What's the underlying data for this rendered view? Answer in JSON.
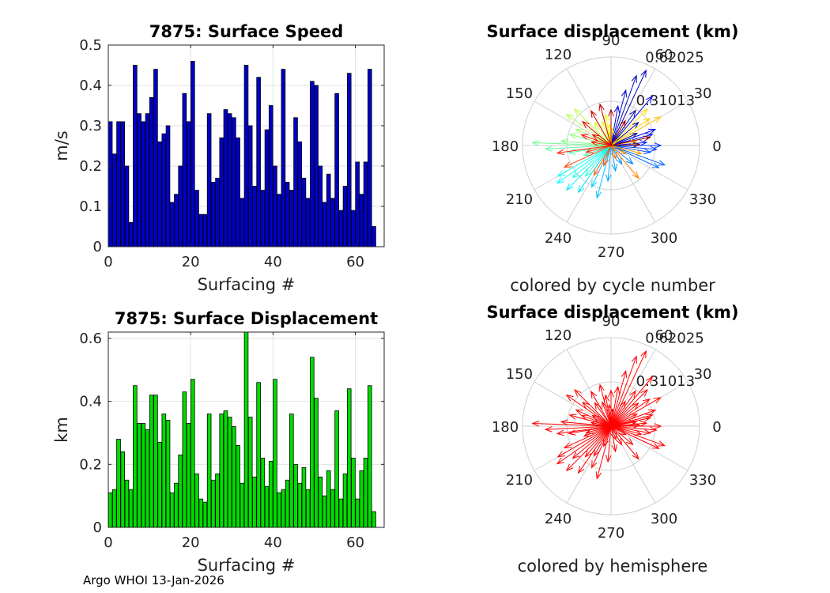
{
  "footer": "Argo WHOI 13-Jan-2026",
  "chart_data": [
    {
      "type": "bar",
      "title": "7875: Surface Speed",
      "xlabel": "Surfacing #",
      "ylabel": "m/s",
      "xlim": [
        0,
        67
      ],
      "ylim": [
        0,
        0.5
      ],
      "xticks": [
        "0",
        "20",
        "40",
        "60"
      ],
      "yticks": [
        "0",
        "0.1",
        "0.2",
        "0.3",
        "0.4",
        "0.5"
      ],
      "color": "#0000c8",
      "x": [
        0,
        1,
        2,
        3,
        4,
        5,
        6,
        7,
        8,
        9,
        10,
        11,
        12,
        13,
        14,
        15,
        16,
        17,
        18,
        19,
        20,
        21,
        22,
        23,
        24,
        25,
        26,
        27,
        28,
        29,
        30,
        31,
        32,
        33,
        34,
        35,
        36,
        37,
        38,
        39,
        40,
        41,
        42,
        43,
        44,
        45,
        46,
        47,
        48,
        49,
        50,
        51,
        52,
        53,
        54,
        55,
        56,
        57,
        58,
        59,
        60,
        61,
        62,
        63,
        64
      ],
      "values": [
        0.31,
        0.23,
        0.31,
        0.31,
        0.2,
        0.06,
        0.45,
        0.33,
        0.31,
        0.33,
        0.37,
        0.44,
        0.26,
        0.28,
        0.3,
        0.11,
        0.13,
        0.2,
        0.38,
        0.31,
        0.46,
        0.14,
        0.08,
        0.08,
        0.33,
        0.16,
        0.17,
        0.27,
        0.34,
        0.33,
        0.32,
        0.27,
        0.12,
        0.45,
        0.3,
        0.15,
        0.42,
        0.14,
        0.29,
        0.35,
        0.2,
        0.13,
        0.44,
        0.16,
        0.14,
        0.32,
        0.26,
        0.17,
        0.12,
        0.41,
        0.4,
        0.2,
        0.11,
        0.18,
        0.12,
        0.38,
        0.09,
        0.15,
        0.43,
        0.09,
        0.21,
        0.13,
        0.21,
        0.44,
        0.05
      ]
    },
    {
      "type": "bar",
      "title": "7875: Surface Displacement",
      "xlabel": "Surfacing #",
      "ylabel": "km",
      "xlim": [
        0,
        67
      ],
      "ylim": [
        0,
        0.62
      ],
      "xticks": [
        "0",
        "20",
        "40",
        "60"
      ],
      "yticks": [
        "0",
        "0.2",
        "0.4",
        "0.6"
      ],
      "color": "#00dc00",
      "x": [
        0,
        1,
        2,
        3,
        4,
        5,
        6,
        7,
        8,
        9,
        10,
        11,
        12,
        13,
        14,
        15,
        16,
        17,
        18,
        19,
        20,
        21,
        22,
        23,
        24,
        25,
        26,
        27,
        28,
        29,
        30,
        31,
        32,
        33,
        34,
        35,
        36,
        37,
        38,
        39,
        40,
        41,
        42,
        43,
        44,
        45,
        46,
        47,
        48,
        49,
        50,
        51,
        52,
        53,
        54,
        55,
        56,
        57,
        58,
        59,
        60,
        61,
        62,
        63,
        64
      ],
      "values": [
        0.11,
        0.12,
        0.28,
        0.24,
        0.15,
        0.12,
        0.45,
        0.33,
        0.33,
        0.31,
        0.42,
        0.42,
        0.27,
        0.36,
        0.34,
        0.11,
        0.14,
        0.23,
        0.43,
        0.33,
        0.47,
        0.17,
        0.09,
        0.08,
        0.36,
        0.15,
        0.17,
        0.36,
        0.37,
        0.35,
        0.32,
        0.26,
        0.14,
        0.62,
        0.35,
        0.16,
        0.46,
        0.22,
        0.13,
        0.21,
        0.47,
        0.11,
        0.12,
        0.15,
        0.36,
        0.2,
        0.14,
        0.19,
        0.12,
        0.54,
        0.41,
        0.16,
        0.1,
        0.18,
        0.12,
        0.37,
        0.09,
        0.17,
        0.44,
        0.22,
        0.09,
        0.18,
        0.22,
        0.45,
        0.05
      ]
    },
    {
      "type": "polar-quiver",
      "title": "Surface displacement (km)",
      "caption": "colored by cycle number",
      "rlim": [
        0,
        0.62025
      ],
      "rticks": [
        "0.31013",
        "0.62025"
      ],
      "angle_ticks": [
        "0",
        "30",
        "60",
        "90",
        "120",
        "150",
        "180",
        "210",
        "240",
        "270",
        "300",
        "330"
      ],
      "colormap": "jet",
      "vectors": [
        {
          "angle": 25,
          "r": 0.2
        },
        {
          "angle": 40,
          "r": 0.25
        },
        {
          "angle": 55,
          "r": 0.3
        },
        {
          "angle": 65,
          "r": 0.58
        },
        {
          "angle": 70,
          "r": 0.52
        },
        {
          "angle": 75,
          "r": 0.4
        },
        {
          "angle": 80,
          "r": 0.28
        },
        {
          "angle": 50,
          "r": 0.45
        },
        {
          "angle": 20,
          "r": 0.33
        },
        {
          "angle": 15,
          "r": 0.3
        },
        {
          "angle": 5,
          "r": 0.25
        },
        {
          "angle": 0,
          "r": 0.35
        },
        {
          "angle": 355,
          "r": 0.32
        },
        {
          "angle": 350,
          "r": 0.28
        },
        {
          "angle": 340,
          "r": 0.4
        },
        {
          "angle": 335,
          "r": 0.37
        },
        {
          "angle": 320,
          "r": 0.2
        },
        {
          "angle": 300,
          "r": 0.15
        },
        {
          "angle": 280,
          "r": 0.18
        },
        {
          "angle": 265,
          "r": 0.25
        },
        {
          "angle": 255,
          "r": 0.38
        },
        {
          "angle": 245,
          "r": 0.32
        },
        {
          "angle": 235,
          "r": 0.4
        },
        {
          "angle": 225,
          "r": 0.44
        },
        {
          "angle": 215,
          "r": 0.46
        },
        {
          "angle": 210,
          "r": 0.43
        },
        {
          "angle": 220,
          "r": 0.35
        },
        {
          "angle": 230,
          "r": 0.28
        },
        {
          "angle": 200,
          "r": 0.2
        },
        {
          "angle": 190,
          "r": 0.3
        },
        {
          "angle": 183,
          "r": 0.46
        },
        {
          "angle": 178,
          "r": 0.55
        },
        {
          "angle": 175,
          "r": 0.35
        },
        {
          "angle": 165,
          "r": 0.3
        },
        {
          "angle": 155,
          "r": 0.27
        },
        {
          "angle": 145,
          "r": 0.38
        },
        {
          "angle": 135,
          "r": 0.36
        },
        {
          "angle": 125,
          "r": 0.2
        },
        {
          "angle": 110,
          "r": 0.18
        },
        {
          "angle": 100,
          "r": 0.22
        },
        {
          "angle": 95,
          "r": 0.15
        },
        {
          "angle": 85,
          "r": 0.12
        },
        {
          "angle": 45,
          "r": 0.36
        },
        {
          "angle": 35,
          "r": 0.33
        },
        {
          "angle": 30,
          "r": 0.4
        },
        {
          "angle": 10,
          "r": 0.18
        },
        {
          "angle": 345,
          "r": 0.22
        },
        {
          "angle": 330,
          "r": 0.12
        },
        {
          "angle": 310,
          "r": 0.3
        },
        {
          "angle": 290,
          "r": 0.1
        },
        {
          "angle": 240,
          "r": 0.24
        },
        {
          "angle": 250,
          "r": 0.15
        },
        {
          "angle": 205,
          "r": 0.36
        },
        {
          "angle": 195,
          "r": 0.18
        },
        {
          "angle": 188,
          "r": 0.38
        },
        {
          "angle": 170,
          "r": 0.14
        },
        {
          "angle": 160,
          "r": 0.22
        },
        {
          "angle": 150,
          "r": 0.15
        },
        {
          "angle": 140,
          "r": 0.26
        },
        {
          "angle": 120,
          "r": 0.28
        },
        {
          "angle": 105,
          "r": 0.3
        },
        {
          "angle": 90,
          "r": 0.25
        },
        {
          "angle": 60,
          "r": 0.2
        },
        {
          "angle": 12,
          "r": 0.28
        },
        {
          "angle": 2,
          "r": 0.2
        }
      ]
    },
    {
      "type": "polar-quiver",
      "title": "Surface displacement (km)",
      "caption": "colored by hemisphere",
      "rlim": [
        0,
        0.62025
      ],
      "rticks": [
        "0.31013",
        "0.62025"
      ],
      "angle_ticks": [
        "0",
        "30",
        "60",
        "90",
        "120",
        "150",
        "180",
        "210",
        "240",
        "270",
        "300",
        "330"
      ],
      "color": "#ff0000",
      "same_vectors_as": "previous"
    }
  ]
}
